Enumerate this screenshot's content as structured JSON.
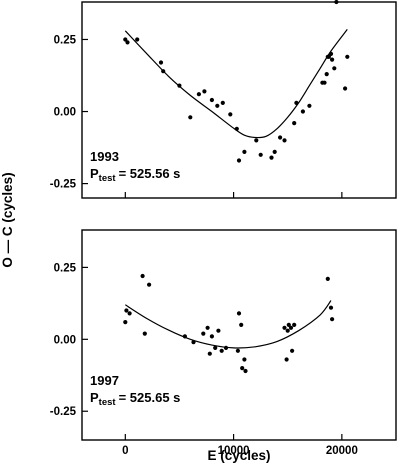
{
  "chart_data": [
    {
      "type": "scatter",
      "label_year": "1993",
      "label_p": "P",
      "label_p_sub": "test",
      "label_p_value": "= 525.56 s",
      "xlim": [
        -4000,
        25000
      ],
      "ylim": [
        -0.3,
        0.38
      ],
      "yticks": [
        0.25,
        0.0,
        -0.25
      ],
      "ytick_labels": [
        "0.25",
        "0.00",
        "-0.25"
      ],
      "xticks": [
        0,
        10000,
        20000
      ],
      "grid": false,
      "series": [
        {
          "points": [
            [
              0,
              0.25
            ],
            [
              200,
              0.24
            ],
            [
              1100,
              0.25
            ],
            [
              3300,
              0.17
            ],
            [
              3500,
              0.14
            ],
            [
              5000,
              0.09
            ],
            [
              6000,
              -0.02
            ],
            [
              6800,
              0.06
            ],
            [
              7300,
              0.07
            ],
            [
              8000,
              0.04
            ],
            [
              8500,
              0.02
            ],
            [
              9000,
              0.03
            ],
            [
              9700,
              -0.01
            ],
            [
              10300,
              -0.06
            ],
            [
              10500,
              -0.17
            ],
            [
              11000,
              -0.14
            ],
            [
              12100,
              -0.1
            ],
            [
              12500,
              -0.15
            ],
            [
              13500,
              -0.16
            ],
            [
              13800,
              -0.14
            ],
            [
              14300,
              -0.09
            ],
            [
              14700,
              -0.1
            ],
            [
              15600,
              -0.04
            ],
            [
              15800,
              0.03
            ],
            [
              16400,
              0.0
            ],
            [
              17000,
              0.02
            ],
            [
              18200,
              0.1
            ],
            [
              18400,
              0.1
            ],
            [
              18600,
              0.13
            ],
            [
              18700,
              0.19
            ],
            [
              18800,
              0.19
            ],
            [
              19000,
              0.2
            ],
            [
              19100,
              0.18
            ],
            [
              19300,
              0.15
            ],
            [
              19500,
              0.38
            ],
            [
              20300,
              0.08
            ],
            [
              20500,
              0.19
            ]
          ],
          "fit": [
            [
              0,
              0.28
            ],
            [
              2000,
              0.2
            ],
            [
              4000,
              0.122
            ],
            [
              6000,
              0.056
            ],
            [
              8000,
              0.0
            ],
            [
              10000,
              -0.058
            ],
            [
              11000,
              -0.082
            ],
            [
              12000,
              -0.09
            ],
            [
              13000,
              -0.086
            ],
            [
              14000,
              -0.06
            ],
            [
              15000,
              -0.02
            ],
            [
              16000,
              0.03
            ],
            [
              17000,
              0.09
            ],
            [
              18000,
              0.15
            ],
            [
              19000,
              0.21
            ],
            [
              20500,
              0.285
            ]
          ]
        }
      ]
    },
    {
      "type": "scatter",
      "label_year": "1997",
      "label_p": "P",
      "label_p_sub": "test",
      "label_p_value": "= 525.65 s",
      "xlim": [
        -4000,
        25000
      ],
      "ylim": [
        -0.35,
        0.38
      ],
      "yticks": [
        0.25,
        0.0,
        -0.25
      ],
      "ytick_labels": [
        "0.25",
        "0.00",
        "-0.25"
      ],
      "xticks": [
        0,
        10000,
        20000
      ],
      "xtick_labels": [
        "0",
        "10000",
        "20000"
      ],
      "xlabel": "E (cycles)",
      "grid": false,
      "series": [
        {
          "points": [
            [
              0,
              0.06
            ],
            [
              100,
              0.1
            ],
            [
              400,
              0.09
            ],
            [
              1600,
              0.22
            ],
            [
              2200,
              0.19
            ],
            [
              1800,
              0.02
            ],
            [
              5500,
              0.01
            ],
            [
              6300,
              -0.01
            ],
            [
              7200,
              0.02
            ],
            [
              7600,
              0.04
            ],
            [
              7800,
              -0.05
            ],
            [
              8000,
              0.01
            ],
            [
              8300,
              -0.03
            ],
            [
              8600,
              0.03
            ],
            [
              8900,
              -0.04
            ],
            [
              9300,
              -0.03
            ],
            [
              10400,
              -0.04
            ],
            [
              10500,
              0.09
            ],
            [
              10700,
              0.05
            ],
            [
              10800,
              -0.1
            ],
            [
              11000,
              -0.07
            ],
            [
              11100,
              -0.11
            ],
            [
              14700,
              0.04
            ],
            [
              14900,
              -0.07
            ],
            [
              15000,
              0.03
            ],
            [
              15100,
              0.05
            ],
            [
              15300,
              0.04
            ],
            [
              15400,
              -0.04
            ],
            [
              15600,
              0.05
            ],
            [
              18700,
              0.21
            ],
            [
              19000,
              0.11
            ],
            [
              19100,
              0.07
            ]
          ],
          "fit": [
            [
              0,
              0.12
            ],
            [
              2000,
              0.072
            ],
            [
              4000,
              0.032
            ],
            [
              6000,
              0.0
            ],
            [
              8000,
              -0.02
            ],
            [
              10000,
              -0.03
            ],
            [
              12000,
              -0.026
            ],
            [
              14000,
              -0.008
            ],
            [
              16000,
              0.03
            ],
            [
              18000,
              0.085
            ],
            [
              19000,
              0.135
            ]
          ]
        }
      ]
    }
  ],
  "shared_ylabel": "O — C (cycles)"
}
